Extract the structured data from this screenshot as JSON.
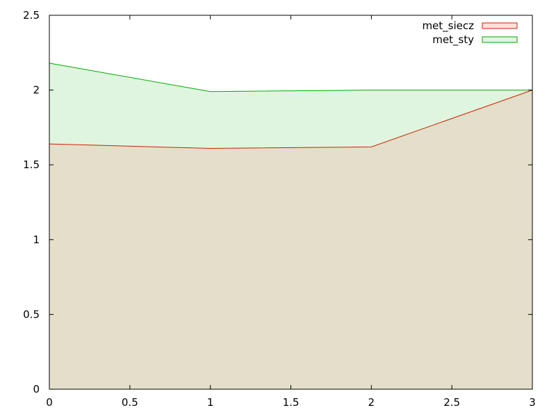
{
  "chart_data": {
    "type": "area",
    "title": "",
    "xlabel": "",
    "ylabel": "",
    "xlim": [
      0,
      3
    ],
    "ylim": [
      0,
      2.5
    ],
    "x_ticks": [
      0,
      0.5,
      1,
      1.5,
      2,
      2.5,
      3
    ],
    "x_tick_labels": [
      "0",
      "0.5",
      "1",
      "1.5",
      "2",
      "2.5",
      "3"
    ],
    "y_ticks": [
      0,
      0.5,
      1,
      1.5,
      2,
      2.5
    ],
    "y_tick_labels": [
      "0",
      "0.5",
      "1",
      "1.5",
      "2",
      "2.5"
    ],
    "grid": false,
    "legend_position": "top-right",
    "x": [
      0,
      1,
      2,
      3
    ],
    "series": [
      {
        "name": "met_siecz",
        "values": [
          1.64,
          1.61,
          1.62,
          2.0
        ],
        "line_color": "#cc2200",
        "fill_color": "#fde0dc"
      },
      {
        "name": "met_sty",
        "values": [
          2.18,
          1.99,
          2.0,
          2.0
        ],
        "line_color": "#00aa00",
        "fill_color": "#e0f5df"
      }
    ],
    "overlap_fill_color": "#e3dfca"
  }
}
